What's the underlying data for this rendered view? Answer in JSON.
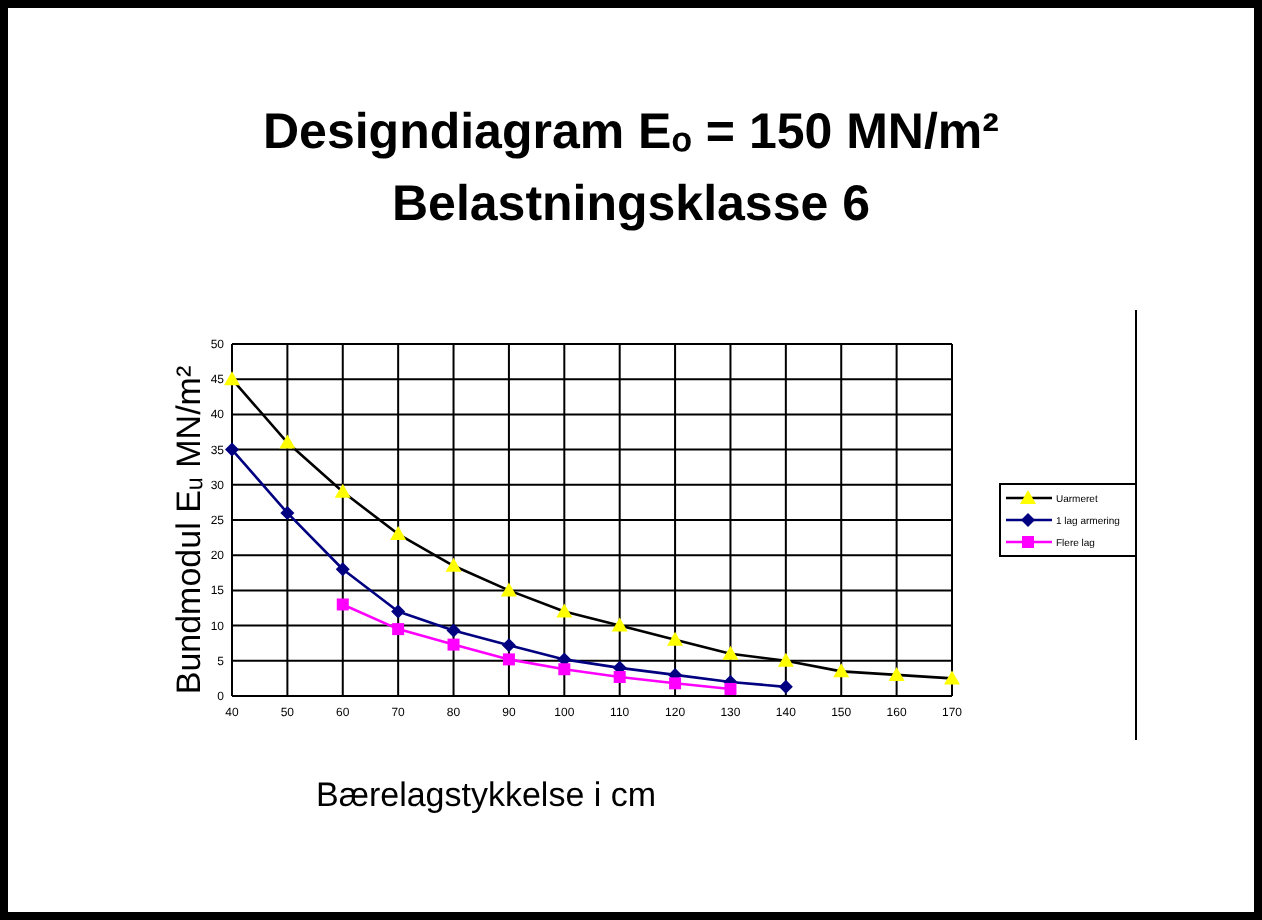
{
  "chart_data": {
    "type": "line",
    "title": "Designdiagram Eₒ = 150 MN/m²",
    "subtitle": "Belastningsklasse 6",
    "xlabel": "Bærelagstykkelse i cm",
    "ylabel": "Bundmodul Eᵤ MN/m²",
    "x": [
      40,
      50,
      60,
      70,
      80,
      90,
      100,
      110,
      120,
      130,
      140,
      150,
      160,
      170
    ],
    "xlim": [
      40,
      170
    ],
    "xticks": [
      40,
      50,
      60,
      70,
      80,
      90,
      100,
      110,
      120,
      130,
      140,
      150,
      160,
      170
    ],
    "ylim": [
      0,
      50
    ],
    "yticks": [
      0,
      5,
      10,
      15,
      20,
      25,
      30,
      35,
      40,
      45,
      50
    ],
    "grid": true,
    "legend": "right",
    "series": [
      {
        "name": "Uarmeret",
        "color": "#000000",
        "marker": "triangle",
        "values": [
          45,
          36,
          29,
          23,
          18.5,
          15,
          12,
          10,
          8,
          6,
          5,
          3.5,
          3,
          2.5
        ]
      },
      {
        "name": "1 lag armering",
        "color": "#000080",
        "marker": "diamond",
        "values": [
          35,
          26,
          18,
          12,
          9.3,
          7.2,
          5.2,
          4,
          3,
          2,
          1.3,
          null,
          null,
          null
        ]
      },
      {
        "name": "Flere lag",
        "color": "#ff00ff",
        "marker": "square",
        "values": [
          null,
          null,
          13,
          9.5,
          7.3,
          5.2,
          3.8,
          2.7,
          1.8,
          1,
          null,
          null,
          null,
          null
        ]
      }
    ]
  }
}
